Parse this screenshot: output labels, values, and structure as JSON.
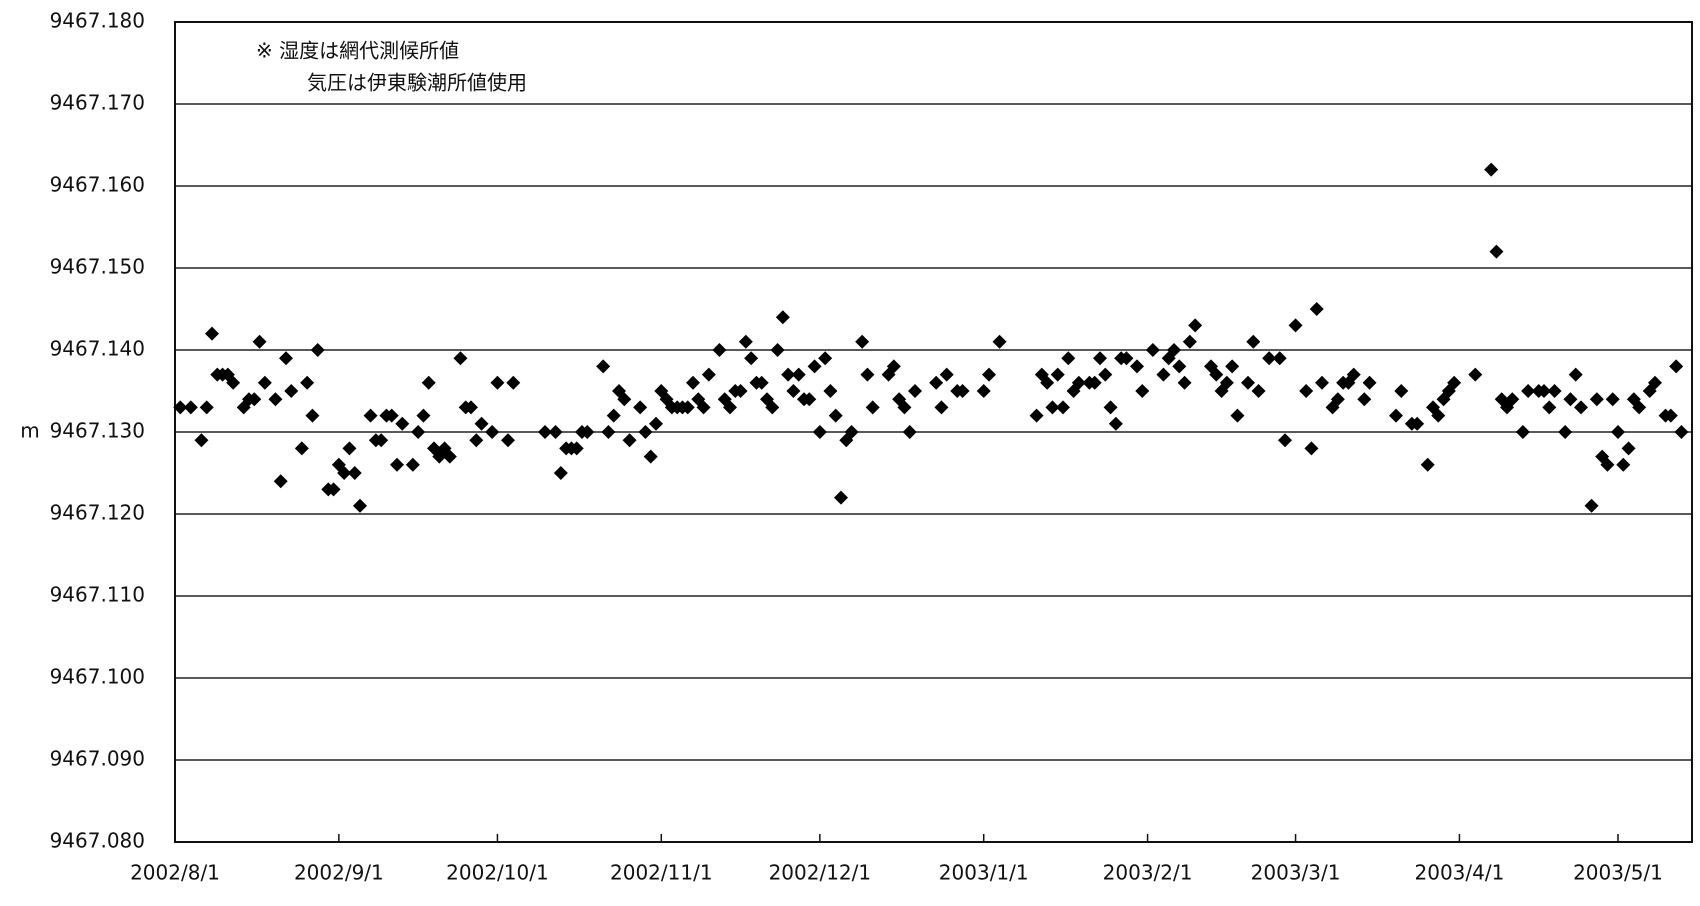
{
  "chart_data": {
    "type": "scatter",
    "y_label": "m",
    "annotations": [
      "※  湿度は網代測候所値",
      "気圧は伊東験潮所値使用"
    ],
    "color": "#000000",
    "grid": true,
    "xlim": [
      "2002/8/1",
      "2003/5/15"
    ],
    "xticks": [
      "2002/8/1",
      "2002/9/1",
      "2002/10/1",
      "2002/11/1",
      "2002/12/1",
      "2003/1/1",
      "2003/2/1",
      "2003/3/1",
      "2003/4/1",
      "2003/5/1"
    ],
    "ylim": [
      9467.08,
      9467.18
    ],
    "yticks": [
      {
        "value": 9467.08,
        "label": "9467.080"
      },
      {
        "value": 9467.09,
        "label": "9467.090"
      },
      {
        "value": 9467.1,
        "label": "9467.100"
      },
      {
        "value": 9467.11,
        "label": "9467.110"
      },
      {
        "value": 9467.12,
        "label": "9467.120"
      },
      {
        "value": 9467.13,
        "label": "9467.130"
      },
      {
        "value": 9467.14,
        "label": "9467.140"
      },
      {
        "value": 9467.15,
        "label": "9467.150"
      },
      {
        "value": 9467.16,
        "label": "9467.160"
      },
      {
        "value": 9467.17,
        "label": "9467.170"
      },
      {
        "value": 9467.18,
        "label": "9467.180"
      }
    ],
    "x": [
      "2002/8/2",
      "2002/8/4",
      "2002/8/6",
      "2002/8/7",
      "2002/8/8",
      "2002/8/9",
      "2002/8/10",
      "2002/8/11",
      "2002/8/12",
      "2002/8/14",
      "2002/8/15",
      "2002/8/16",
      "2002/8/17",
      "2002/8/18",
      "2002/8/20",
      "2002/8/21",
      "2002/8/22",
      "2002/8/23",
      "2002/8/25",
      "2002/8/26",
      "2002/8/27",
      "2002/8/28",
      "2002/8/30",
      "2002/8/31",
      "2002/9/1",
      "2002/9/2",
      "2002/9/3",
      "2002/9/4",
      "2002/9/5",
      "2002/9/7",
      "2002/9/8",
      "2002/9/9",
      "2002/9/10",
      "2002/9/11",
      "2002/9/12",
      "2002/9/13",
      "2002/9/15",
      "2002/9/16",
      "2002/9/17",
      "2002/9/18",
      "2002/9/19",
      "2002/9/20",
      "2002/9/21",
      "2002/9/22",
      "2002/9/24",
      "2002/9/25",
      "2002/9/26",
      "2002/9/27",
      "2002/9/28",
      "2002/9/30",
      "2002/10/1",
      "2002/10/3",
      "2002/10/4",
      "2002/10/10",
      "2002/10/12",
      "2002/10/13",
      "2002/10/14",
      "2002/10/15",
      "2002/10/16",
      "2002/10/17",
      "2002/10/18",
      "2002/10/21",
      "2002/10/22",
      "2002/10/23",
      "2002/10/24",
      "2002/10/25",
      "2002/10/26",
      "2002/10/28",
      "2002/10/29",
      "2002/10/30",
      "2002/10/31",
      "2002/11/1",
      "2002/11/2",
      "2002/11/3",
      "2002/11/4",
      "2002/11/5",
      "2002/11/6",
      "2002/11/7",
      "2002/11/8",
      "2002/11/9",
      "2002/11/10",
      "2002/11/12",
      "2002/11/13",
      "2002/11/14",
      "2002/11/15",
      "2002/11/16",
      "2002/11/17",
      "2002/11/18",
      "2002/11/19",
      "2002/11/20",
      "2002/11/21",
      "2002/11/22",
      "2002/11/23",
      "2002/11/24",
      "2002/11/25",
      "2002/11/26",
      "2002/11/27",
      "2002/11/28",
      "2002/11/29",
      "2002/11/30",
      "2002/12/1",
      "2002/12/2",
      "2002/12/3",
      "2002/12/4",
      "2002/12/5",
      "2002/12/6",
      "2002/12/7",
      "2002/12/9",
      "2002/12/10",
      "2002/12/11",
      "2002/12/14",
      "2002/12/15",
      "2002/12/16",
      "2002/12/17",
      "2002/12/18",
      "2002/12/19",
      "2002/12/23",
      "2002/12/24",
      "2002/12/25",
      "2002/12/27",
      "2002/12/28",
      "2003/1/1",
      "2003/1/2",
      "2003/1/4",
      "2003/1/11",
      "2003/1/12",
      "2003/1/13",
      "2003/1/14",
      "2003/1/15",
      "2003/1/16",
      "2003/1/17",
      "2003/1/18",
      "2003/1/19",
      "2003/1/21",
      "2003/1/22",
      "2003/1/23",
      "2003/1/24",
      "2003/1/25",
      "2003/1/26",
      "2003/1/27",
      "2003/1/28",
      "2003/1/30",
      "2003/1/31",
      "2003/2/2",
      "2003/2/4",
      "2003/2/5",
      "2003/2/6",
      "2003/2/7",
      "2003/2/8",
      "2003/2/9",
      "2003/2/10",
      "2003/2/13",
      "2003/2/14",
      "2003/2/15",
      "2003/2/16",
      "2003/2/17",
      "2003/2/18",
      "2003/2/20",
      "2003/2/21",
      "2003/2/22",
      "2003/2/24",
      "2003/2/26",
      "2003/2/27",
      "2003/3/1",
      "2003/3/3",
      "2003/3/4",
      "2003/3/5",
      "2003/3/6",
      "2003/3/8",
      "2003/3/9",
      "2003/3/10",
      "2003/3/11",
      "2003/3/12",
      "2003/3/14",
      "2003/3/15",
      "2003/3/20",
      "2003/3/21",
      "2003/3/23",
      "2003/3/24",
      "2003/3/26",
      "2003/3/27",
      "2003/3/28",
      "2003/3/29",
      "2003/3/30",
      "2003/3/31",
      "2003/4/4",
      "2003/4/7",
      "2003/4/8",
      "2003/4/9",
      "2003/4/10",
      "2003/4/11",
      "2003/4/13",
      "2003/4/14",
      "2003/4/16",
      "2003/4/17",
      "2003/4/18",
      "2003/4/19",
      "2003/4/21",
      "2003/4/22",
      "2003/4/23",
      "2003/4/24",
      "2003/4/26",
      "2003/4/27",
      "2003/4/28",
      "2003/4/29",
      "2003/4/30",
      "2003/5/1",
      "2003/5/2",
      "2003/5/3",
      "2003/5/4",
      "2003/5/5",
      "2003/5/7",
      "2003/5/8",
      "2003/5/10",
      "2003/5/11",
      "2003/5/12",
      "2003/5/13"
    ],
    "values": [
      9467.133,
      9467.133,
      9467.129,
      9467.133,
      9467.142,
      9467.137,
      9467.137,
      9467.137,
      9467.136,
      9467.133,
      9467.134,
      9467.134,
      9467.141,
      9467.136,
      9467.134,
      9467.124,
      9467.139,
      9467.135,
      9467.128,
      9467.136,
      9467.132,
      9467.14,
      9467.123,
      9467.123,
      9467.126,
      9467.125,
      9467.128,
      9467.125,
      9467.121,
      9467.132,
      9467.129,
      9467.129,
      9467.132,
      9467.132,
      9467.126,
      9467.131,
      9467.126,
      9467.13,
      9467.132,
      9467.136,
      9467.128,
      9467.127,
      9467.128,
      9467.127,
      9467.139,
      9467.133,
      9467.133,
      9467.129,
      9467.131,
      9467.13,
      9467.136,
      9467.129,
      9467.136,
      9467.13,
      9467.13,
      9467.125,
      9467.128,
      9467.128,
      9467.128,
      9467.13,
      9467.13,
      9467.138,
      9467.13,
      9467.132,
      9467.135,
      9467.134,
      9467.129,
      9467.133,
      9467.13,
      9467.127,
      9467.131,
      9467.135,
      9467.134,
      9467.133,
      9467.133,
      9467.133,
      9467.133,
      9467.136,
      9467.134,
      9467.133,
      9467.137,
      9467.14,
      9467.134,
      9467.133,
      9467.135,
      9467.135,
      9467.141,
      9467.139,
      9467.136,
      9467.136,
      9467.134,
      9467.133,
      9467.14,
      9467.144,
      9467.137,
      9467.135,
      9467.137,
      9467.134,
      9467.134,
      9467.138,
      9467.13,
      9467.139,
      9467.135,
      9467.132,
      9467.122,
      9467.129,
      9467.13,
      9467.141,
      9467.137,
      9467.133,
      9467.137,
      9467.138,
      9467.134,
      9467.133,
      9467.13,
      9467.135,
      9467.136,
      9467.133,
      9467.137,
      9467.135,
      9467.135,
      9467.135,
      9467.137,
      9467.141,
      9467.132,
      9467.137,
      9467.136,
      9467.133,
      9467.137,
      9467.133,
      9467.139,
      9467.135,
      9467.136,
      9467.136,
      9467.136,
      9467.139,
      9467.137,
      9467.133,
      9467.131,
      9467.139,
      9467.139,
      9467.138,
      9467.135,
      9467.14,
      9467.137,
      9467.139,
      9467.14,
      9467.138,
      9467.136,
      9467.141,
      9467.143,
      9467.138,
      9467.137,
      9467.135,
      9467.136,
      9467.138,
      9467.132,
      9467.136,
      9467.141,
      9467.135,
      9467.139,
      9467.139,
      9467.129,
      9467.143,
      9467.135,
      9467.128,
      9467.145,
      9467.136,
      9467.133,
      9467.134,
      9467.136,
      9467.136,
      9467.137,
      9467.134,
      9467.136,
      9467.132,
      9467.135,
      9467.131,
      9467.131,
      9467.126,
      9467.133,
      9467.132,
      9467.134,
      9467.135,
      9467.136,
      9467.137,
      9467.162,
      9467.152,
      9467.134,
      9467.133,
      9467.134,
      9467.13,
      9467.135,
      9467.135,
      9467.135,
      9467.133,
      9467.135,
      9467.13,
      9467.134,
      9467.137,
      9467.133,
      9467.121,
      9467.134,
      9467.127,
      9467.126,
      9467.134,
      9467.13,
      9467.126,
      9467.128,
      9467.134,
      9467.133,
      9467.135,
      9467.136,
      9467.132,
      9467.132,
      9467.138,
      9467.13
    ]
  }
}
